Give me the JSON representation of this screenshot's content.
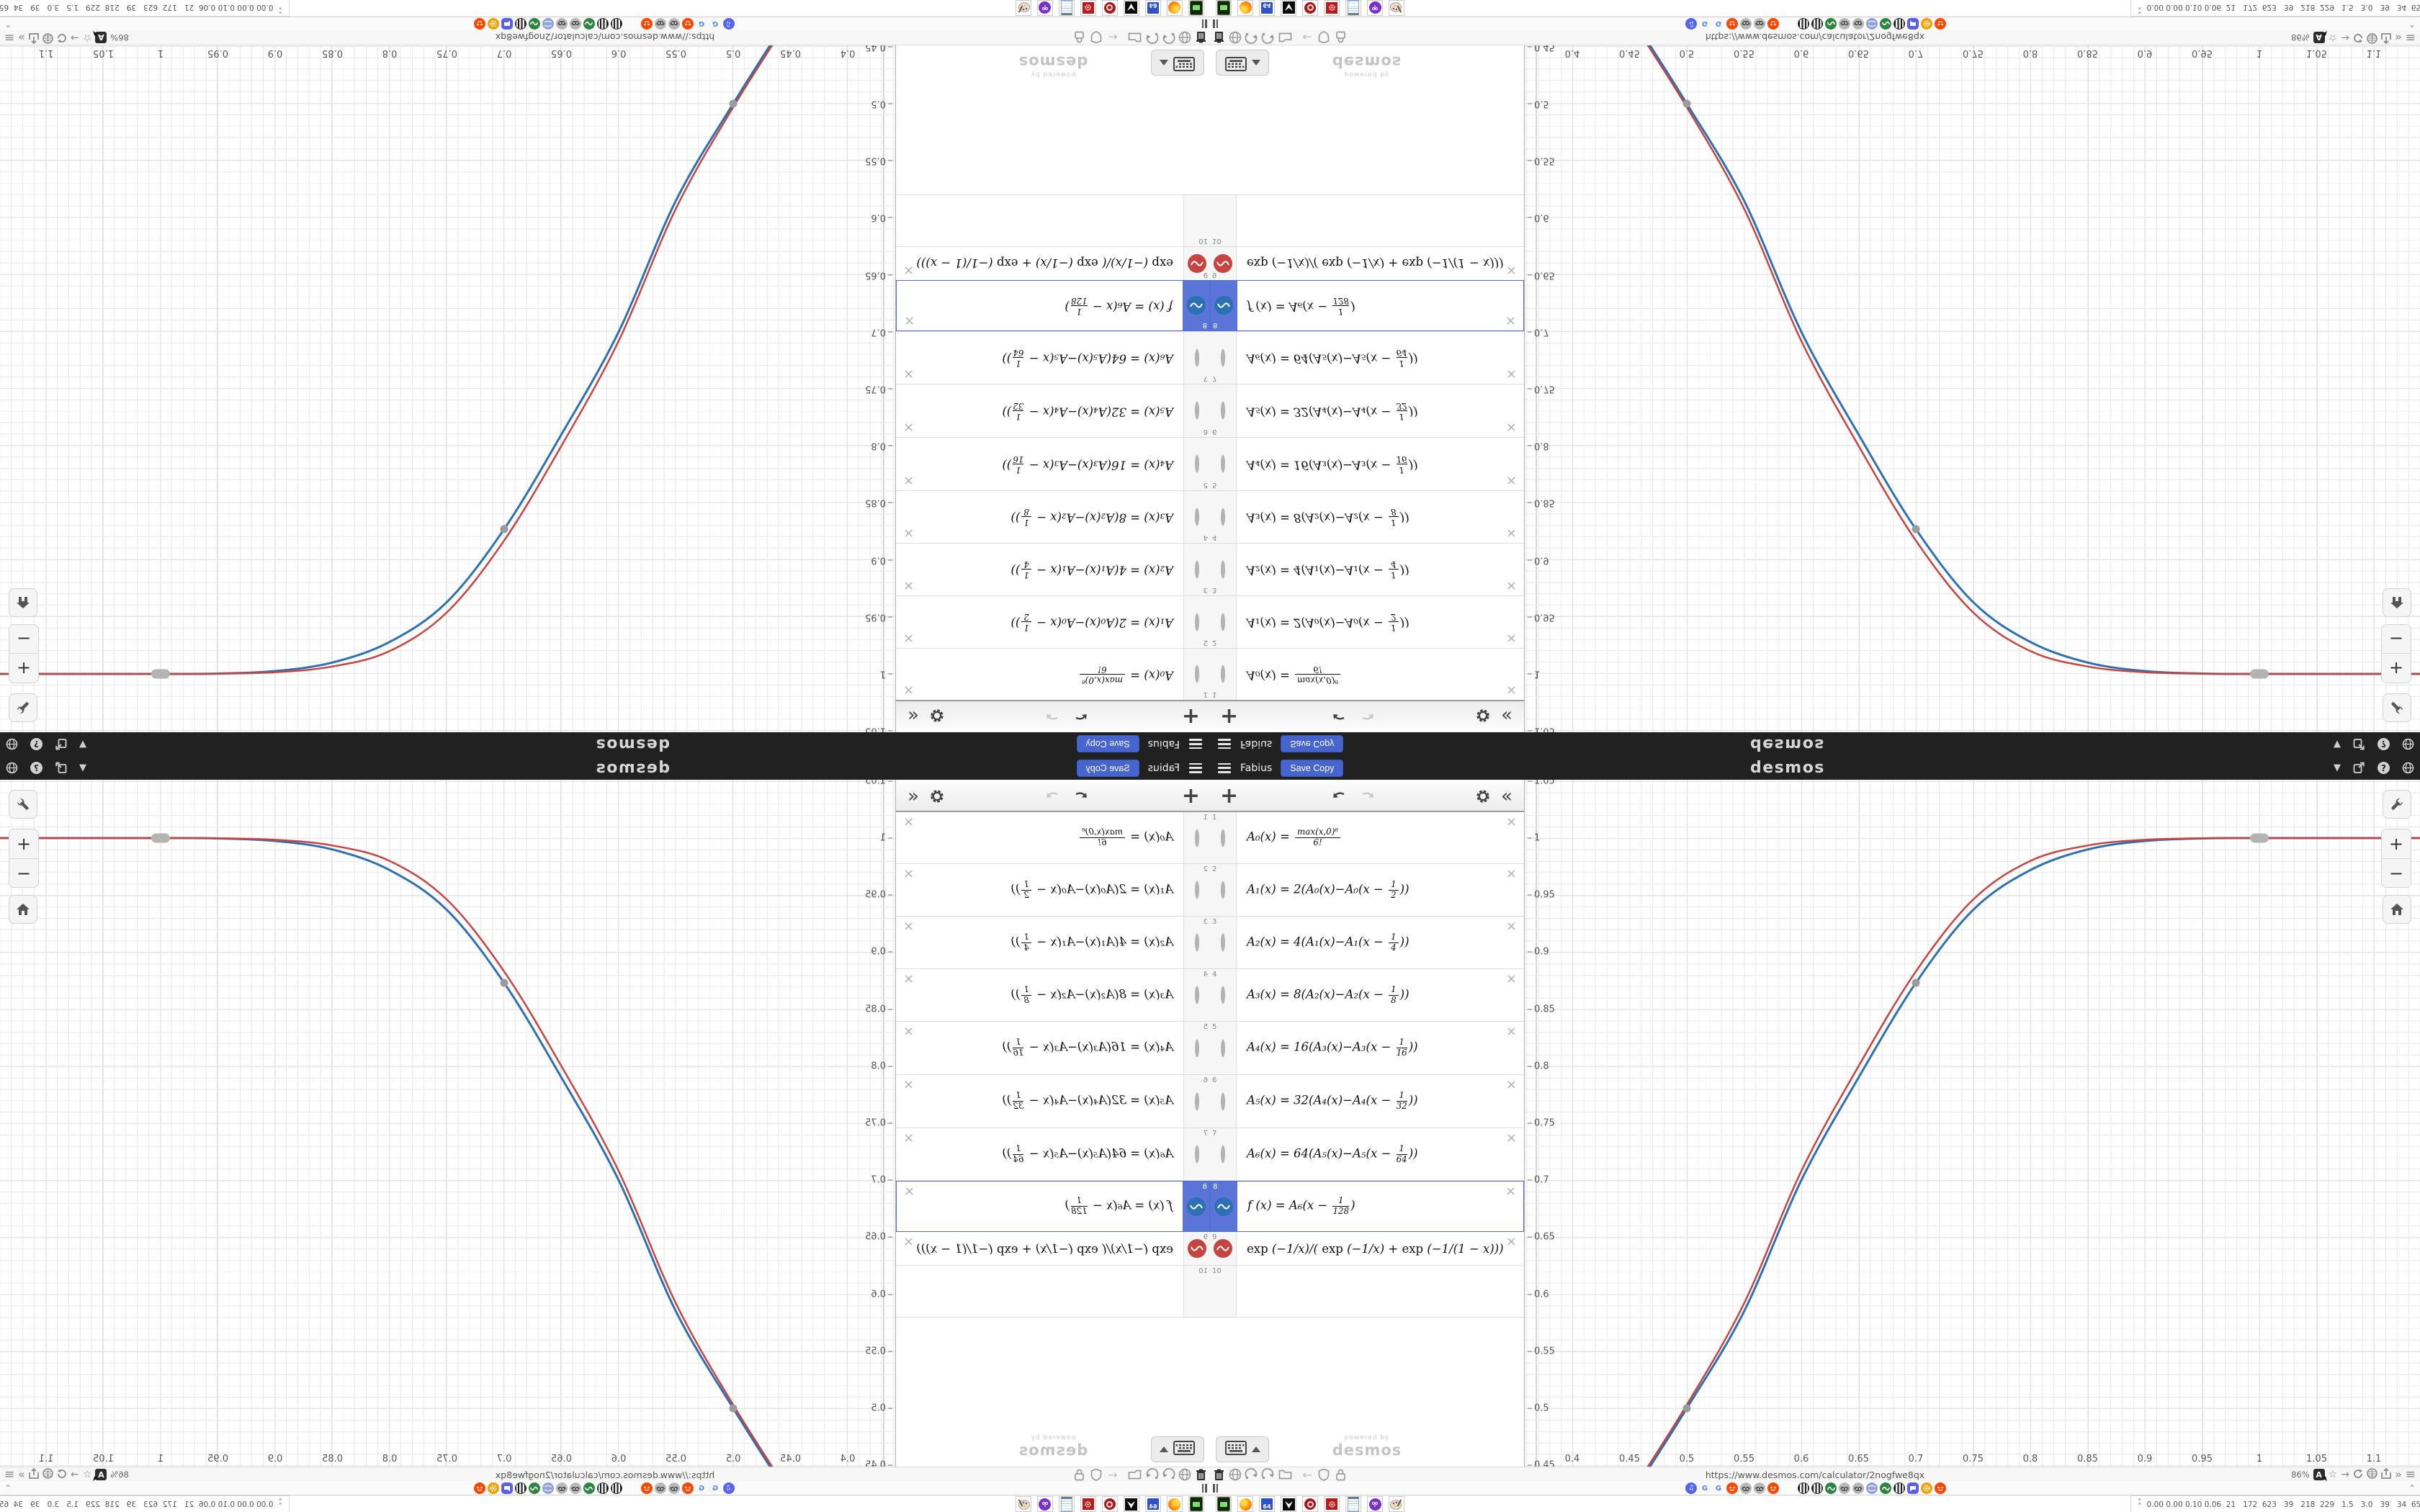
{
  "header": {
    "title": "Fabius",
    "save_button": "Save Copy",
    "logo": "desmos",
    "right_icons": [
      "caret-down",
      "share",
      "help",
      "globe"
    ]
  },
  "toolbar": {
    "add_label": "+",
    "collapse_label": "«",
    "icons": [
      "add-expression",
      "undo",
      "redo",
      "settings-gear",
      "collapse-panel"
    ]
  },
  "expressions": [
    {
      "row": 1,
      "icon": "circle-hidden",
      "formula": "A₀(x) = {max(x,0)⁶|6!}"
    },
    {
      "row": 2,
      "icon": "circle-hidden",
      "formula": "A₁(x) = 2(A₀(x)−A₀(x − {1|2}))"
    },
    {
      "row": 3,
      "icon": "circle-hidden",
      "formula": "A₂(x) = 4(A₁(x)−A₁(x − {1|4}))"
    },
    {
      "row": 4,
      "icon": "circle-hidden",
      "formula": "A₃(x) = 8(A₂(x)−A₂(x − {1|8}))"
    },
    {
      "row": 5,
      "icon": "circle-hidden",
      "formula": "A₄(x) = 16(A₃(x)−A₃(x − {1|16}))"
    },
    {
      "row": 6,
      "icon": "circle-hidden",
      "formula": "A₅(x) = 32(A₄(x)−A₄(x − {1|32}))"
    },
    {
      "row": 7,
      "icon": "circle-hidden",
      "formula": "A₆(x) = 64(A₅(x)−A₅(x − {1|64}))"
    },
    {
      "row": 8,
      "icon": "wave-blue",
      "icon_color": "#2d70b3",
      "selected": true,
      "formula": "f (x) = A₆(x − {1|128})"
    },
    {
      "row": 9,
      "icon": "wave-red",
      "icon_color": "#c74440",
      "formula": "exp (−1/x)/( exp (−1/x) + exp (−1/(1 − x)))"
    },
    {
      "row": 10,
      "icon": "none",
      "formula": ""
    }
  ],
  "keyboard_button": {
    "icons": [
      "keyboard",
      "triangle-up"
    ]
  },
  "watermark": {
    "line1": "powered by",
    "line2": "desmos"
  },
  "graph_controls": {
    "labels": [
      "wrench",
      "zoom-in",
      "zoom-out",
      "home"
    ],
    "zoom_in": "+",
    "zoom_out": "−"
  },
  "chart_data": {
    "type": "line",
    "title": "Fabius function vs smooth exponential step",
    "xlabel": "",
    "ylabel": "",
    "x_range": [
      0.358,
      1.14
    ],
    "y_range": [
      0.449,
      1.051
    ],
    "grid": {
      "minor_step": 0.01,
      "major_step": 0.05,
      "visible": true
    },
    "x_tick_labels": [
      "0.4",
      "0.45",
      "0.5",
      "0.55",
      "0.6",
      "0.65",
      "0.7",
      "0.75",
      "0.8",
      "0.85",
      "0.9",
      "0.95",
      "1",
      "1.05",
      "1.1"
    ],
    "y_tick_labels": [
      "1.05",
      "1",
      "0.95",
      "0.9",
      "0.85",
      "0.8",
      "0.75",
      "0.7",
      "0.65",
      "0.6",
      "0.55",
      "0.5",
      "0.45"
    ],
    "series": [
      {
        "name": "f(x) = A₆(x − 1/128)",
        "color": "#2d70b3",
        "width": 3,
        "points": [
          [
            0.45,
            0.421
          ],
          [
            0.5,
            0.5
          ],
          [
            0.55,
            0.585
          ],
          [
            0.6,
            0.7
          ],
          [
            0.65,
            0.79
          ],
          [
            0.7,
            0.873
          ],
          [
            0.75,
            0.937
          ],
          [
            0.8,
            0.972
          ],
          [
            0.85,
            0.99
          ],
          [
            0.9,
            0.9975
          ],
          [
            0.95,
            0.9997
          ],
          [
            1.0,
            1.0
          ],
          [
            1.15,
            1.0
          ]
        ]
      },
      {
        "name": "exp(−1/x)/(exp(−1/x)+exp(−1/(1−x)))",
        "color": "#c74440",
        "width": 2.5,
        "points": [
          [
            0.45,
            0.424
          ],
          [
            0.5,
            0.503
          ],
          [
            0.55,
            0.592
          ],
          [
            0.6,
            0.708
          ],
          [
            0.65,
            0.8
          ],
          [
            0.7,
            0.883
          ],
          [
            0.75,
            0.946
          ],
          [
            0.8,
            0.98
          ],
          [
            0.85,
            0.9935
          ],
          [
            0.9,
            0.9985
          ],
          [
            0.95,
            0.9998
          ],
          [
            1.0,
            1.0
          ],
          [
            1.15,
            1.0
          ]
        ]
      }
    ],
    "markers": [
      {
        "x": 0.5,
        "y": 0.5
      },
      {
        "x": 0.7,
        "y": 0.873
      }
    ],
    "endpoint_capsule": {
      "x": 1.0,
      "y": 1.0
    }
  },
  "browser": {
    "nav_icons_left": [
      "trash",
      "globe",
      "history-back-arc",
      "history-forward-arc",
      "folder",
      "back-arrow",
      "shield",
      "lock"
    ],
    "url": "https://www.desmos.com/calculator/2nogfwe8qx",
    "zoom_level": "86%",
    "nav_icons_right": [
      "text-size",
      "star",
      "arrow-right",
      "reload",
      "globe",
      "share",
      "chevrons-right",
      "menu"
    ],
    "back_arrow": "←",
    "star": "☆",
    "arrow_right": "→",
    "chevrons_right": "»",
    "menu_glyph": "≡",
    "tab_favicons_group1": [
      "discord",
      "google",
      "google",
      "reddit",
      "raccoon",
      "raccoon",
      "reddit"
    ],
    "tab_favicons_group2": [
      "striped",
      "striped",
      "desmos-wave",
      "raccoon",
      "raccoon",
      "globe-blue",
      "desmos-wave",
      "striped",
      "chat-bubble",
      "gear-orange",
      "reddit"
    ],
    "tab_scroll": "⌃",
    "taskbar_apps": [
      "gameboy-green",
      "firefox",
      "floppy-64",
      "wolf-black",
      "badge-red-ring",
      "gear-red",
      "notepad",
      "owl-purple",
      "palette"
    ],
    "floppy_label": "64",
    "tray_stats": "0.00 0.00 0.10 0.06  21   172  623   39   218  229   1.5   3.0   39   34  65057819"
  },
  "colors": {
    "desmos_blue": "#2d70b3",
    "desmos_red": "#c74440",
    "selected_row": "#5a74d8",
    "save_button": "#4665cf",
    "header_bg": "#212121"
  }
}
